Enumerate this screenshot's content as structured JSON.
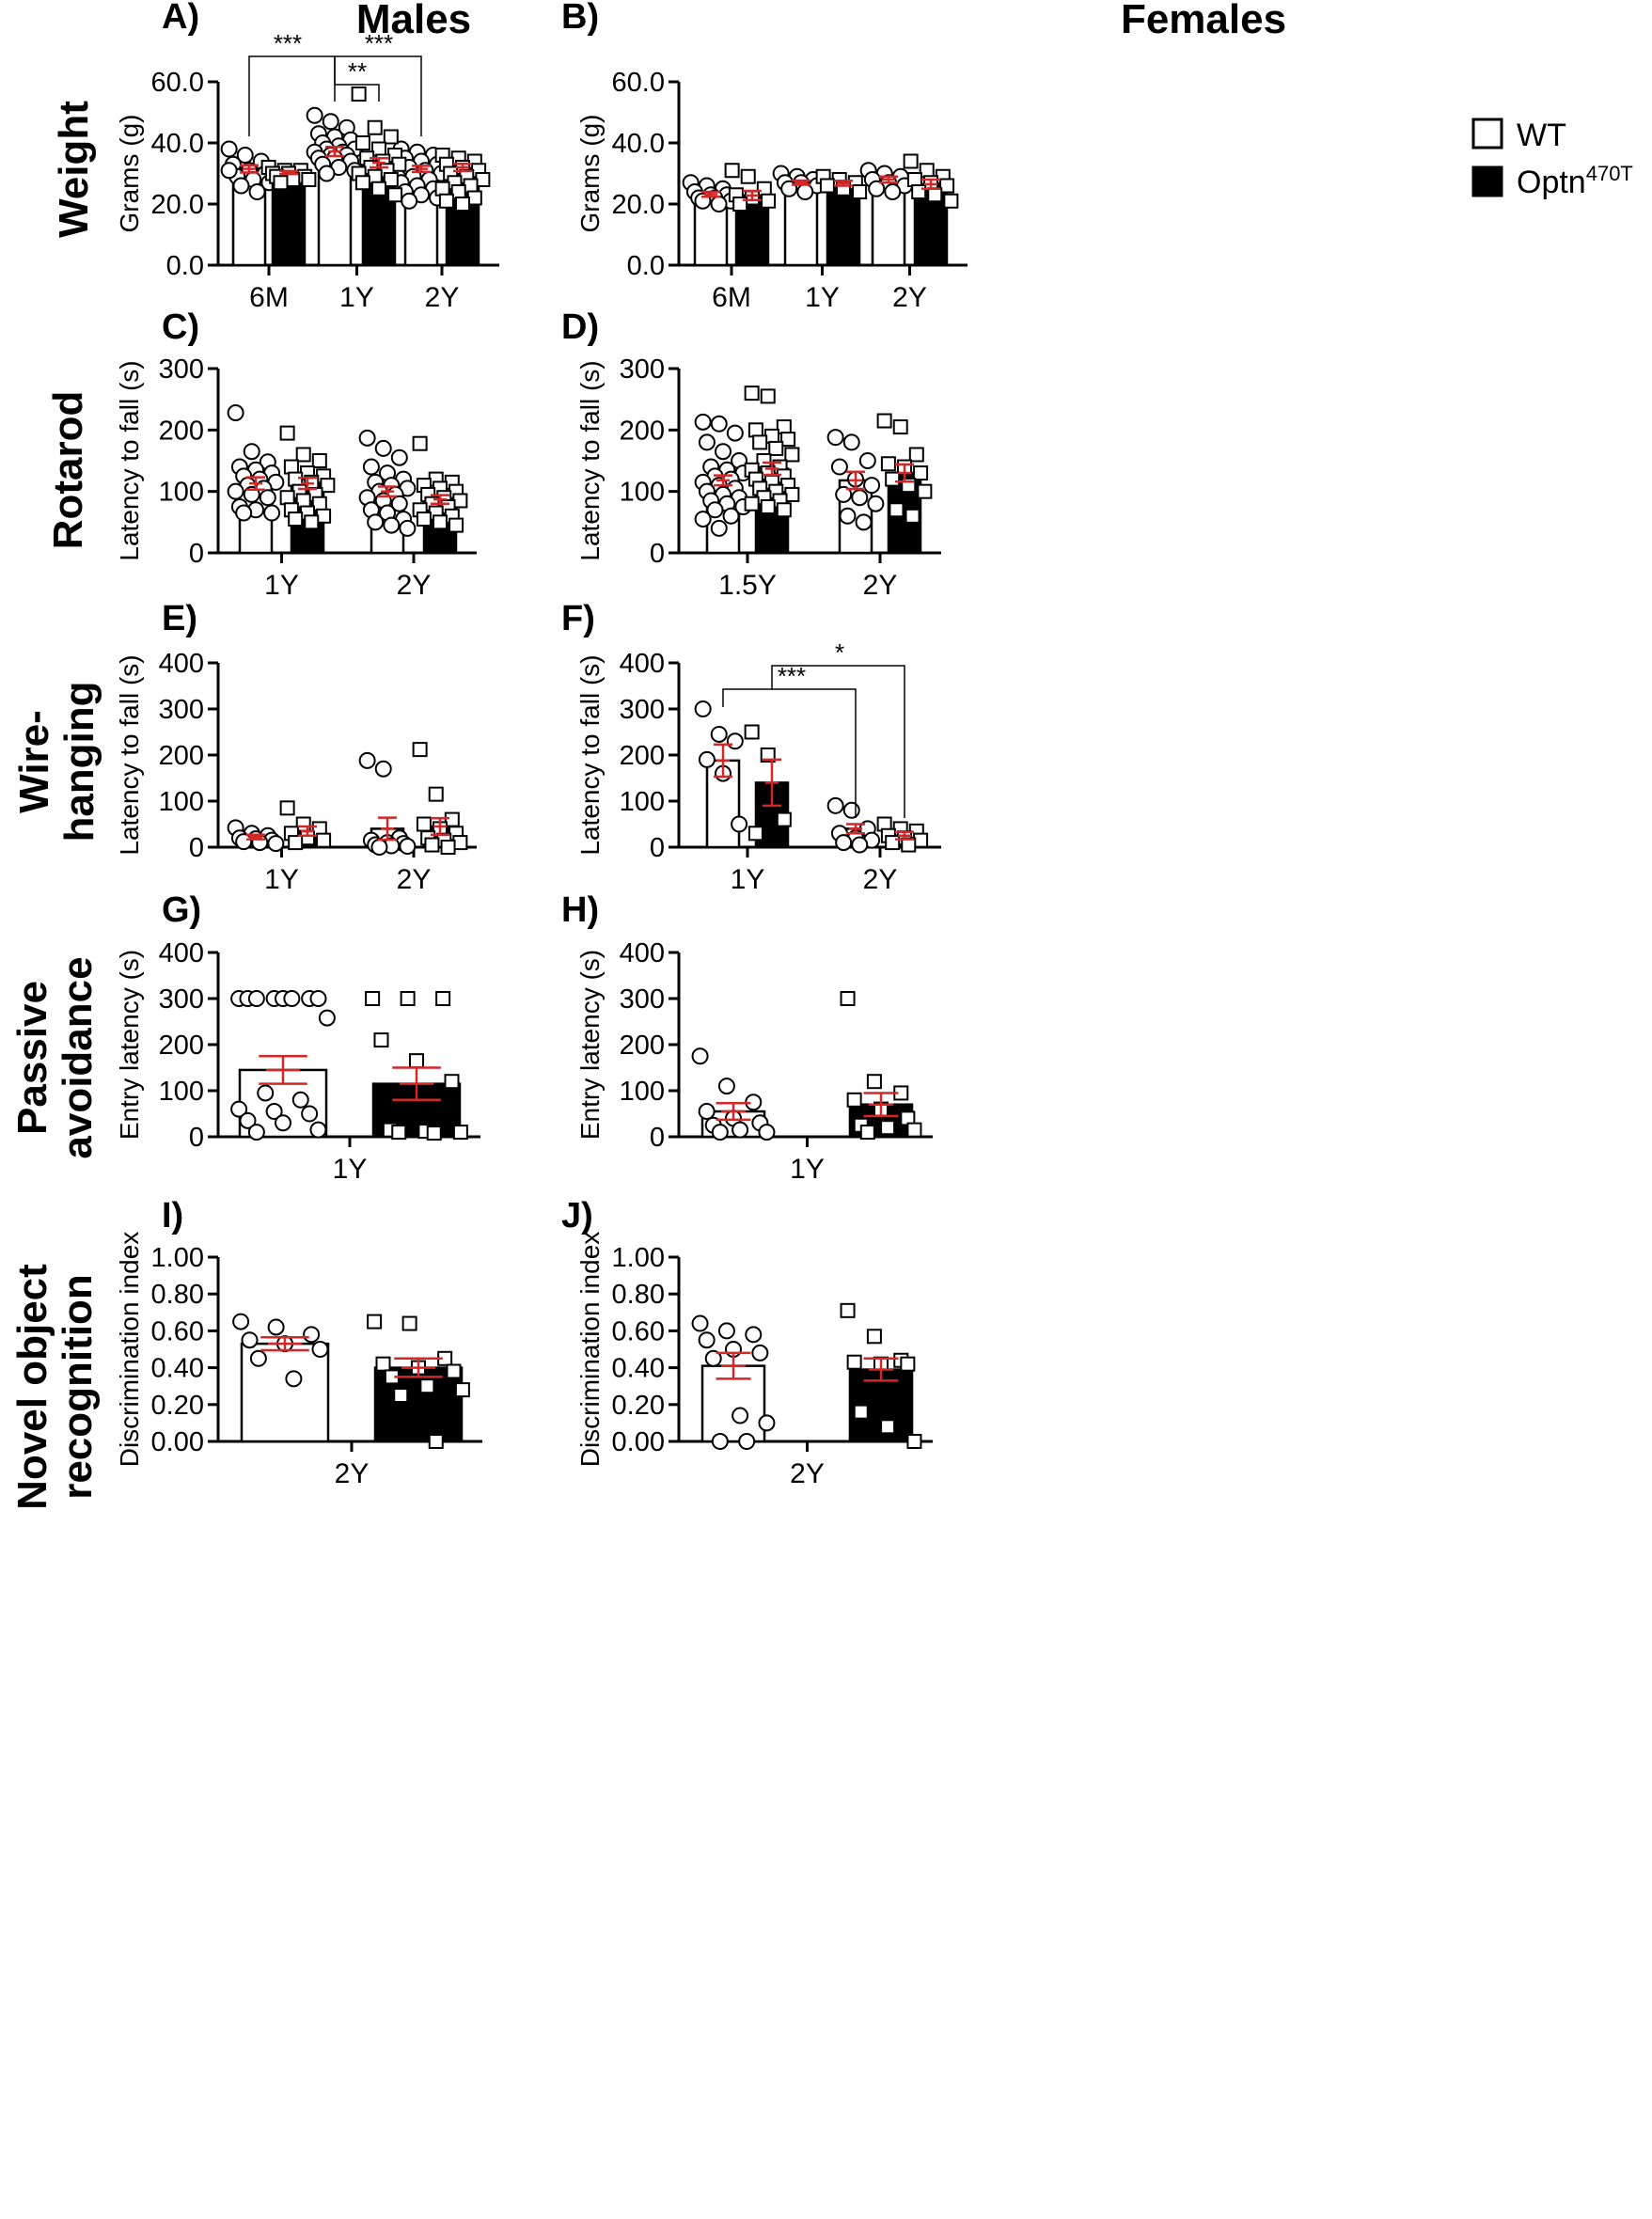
{
  "columns": [
    "Males",
    "Females"
  ],
  "rows": [
    "Weight",
    "Rotarod",
    "Wire-\nhanging",
    "Passive\navoidance",
    "Novel object\nrecognition"
  ],
  "legend": {
    "wt": "WT",
    "mut_base": "Optn",
    "mut_sup": "470T"
  },
  "colors": {
    "wt_fill": "#ffffff",
    "mut_fill": "#000000",
    "error": "#d62728",
    "axis": "#000000"
  },
  "chart_data": [
    {
      "panel": "A)",
      "type": "bar",
      "ylabel": "Grams (g)",
      "ylim": [
        0,
        60
      ],
      "yticks": [
        0,
        20,
        40,
        60
      ],
      "decimals": 1,
      "categories": [
        "6M",
        "1Y",
        "2Y"
      ],
      "series": [
        {
          "name": "WT",
          "means": [
            31.5,
            37.2,
            31.5
          ],
          "sem": [
            1.2,
            1.5,
            1.0
          ],
          "points": [
            [
              38,
              36,
              34,
              33,
              31,
              30,
              29,
              28,
              27,
              26,
              24,
              31
            ],
            [
              49,
              47,
              45,
              43,
              42,
              41,
              40,
              39,
              38,
              38,
              37,
              37,
              36,
              36,
              35,
              35,
              34,
              33,
              32,
              31,
              30
            ],
            [
              38,
              37,
              36,
              35,
              34,
              33,
              32,
              31,
              30,
              29,
              28,
              27,
              26,
              25,
              24,
              23,
              22,
              21
            ]
          ]
        },
        {
          "name": "Optn470T",
          "means": [
            30.3,
            33.5,
            32.0
          ],
          "sem": [
            0.5,
            1.5,
            1.2
          ],
          "points": [
            [
              32,
              31,
              31,
              30,
              30,
              29,
              29,
              28,
              28,
              27
            ],
            [
              56,
              45,
              42,
              40,
              38,
              36,
              35,
              34,
              33,
              32,
              31,
              30,
              29,
              28,
              27,
              25,
              23
            ],
            [
              36,
              35,
              34,
              33,
              32,
              31,
              30,
              29,
              28,
              27,
              26,
              25,
              24,
              22,
              21,
              20
            ]
          ]
        }
      ],
      "significance": [
        {
          "from": "6M WT",
          "to": "1Y WT",
          "label": "***"
        },
        {
          "from": "1Y WT",
          "to": "1Y Optn470T",
          "label": "**"
        },
        {
          "from": "1Y WT",
          "to": "2Y WT",
          "label": "***"
        }
      ]
    },
    {
      "panel": "B)",
      "type": "bar",
      "ylabel": "Grams (g)",
      "ylim": [
        0,
        60
      ],
      "yticks": [
        0,
        20,
        40,
        60
      ],
      "decimals": 1,
      "categories": [
        "6M",
        "1Y",
        "2Y"
      ],
      "series": [
        {
          "name": "WT",
          "means": [
            23.2,
            27.0,
            28.0
          ],
          "sem": [
            0.8,
            0.7,
            1.0
          ],
          "points": [
            [
              27,
              26,
              25,
              24,
              23,
              23,
              22,
              22,
              21,
              21,
              20
            ],
            [
              30,
              29,
              28,
              27,
              27,
              26,
              25,
              24
            ],
            [
              31,
              30,
              29,
              28,
              27,
              26,
              25,
              24
            ]
          ]
        },
        {
          "name": "Optn470T",
          "means": [
            22.8,
            26.8,
            26.5
          ],
          "sem": [
            1.5,
            0.8,
            1.5
          ],
          "points": [
            [
              31,
              29,
              25,
              23,
              22,
              21,
              20
            ],
            [
              29,
              28,
              27,
              26,
              25,
              24
            ],
            [
              34,
              31,
              29,
              28,
              27,
              26,
              24,
              23,
              21
            ]
          ]
        }
      ],
      "significance": []
    },
    {
      "panel": "C)",
      "type": "bar",
      "ylabel": "Latency to fall (s)",
      "ylim": [
        0,
        300
      ],
      "yticks": [
        0,
        100,
        200,
        300
      ],
      "decimals": 0,
      "categories": [
        "1Y",
        "2Y"
      ],
      "series": [
        {
          "name": "WT",
          "means": [
            113,
            100
          ],
          "sem": [
            10,
            8
          ],
          "points": [
            [
              228,
              165,
              148,
              140,
              135,
              130,
              125,
              120,
              115,
              110,
              105,
              100,
              95,
              90,
              75,
              70,
              65,
              65
            ],
            [
              187,
              170,
              155,
              140,
              130,
              120,
              115,
              110,
              105,
              100,
              95,
              90,
              85,
              80,
              70,
              65,
              55,
              50,
              45,
              40
            ]
          ]
        },
        {
          "name": "Optn470T",
          "means": [
            113,
            87
          ],
          "sem": [
            9,
            7
          ],
          "points": [
            [
              195,
              160,
              150,
              140,
              130,
              125,
              120,
              115,
              110,
              100,
              95,
              90,
              85,
              80,
              70,
              65,
              60,
              55,
              50
            ],
            [
              178,
              120,
              115,
              110,
              105,
              100,
              95,
              90,
              85,
              80,
              75,
              70,
              65,
              60,
              55,
              50,
              45
            ]
          ]
        }
      ],
      "significance": []
    },
    {
      "panel": "D)",
      "type": "bar",
      "ylabel": "Latency to fall  (s)",
      "ylim": [
        0,
        300
      ],
      "yticks": [
        0,
        100,
        200,
        300
      ],
      "decimals": 0,
      "categories": [
        "1.5Y",
        "2Y"
      ],
      "series": [
        {
          "name": "WT",
          "means": [
            118,
            118
          ],
          "sem": [
            8,
            14
          ],
          "points": [
            [
              213,
              210,
              195,
              180,
              165,
              150,
              140,
              135,
              130,
              125,
              120,
              115,
              110,
              105,
              100,
              95,
              90,
              85,
              80,
              75,
              70,
              60,
              55,
              40
            ],
            [
              188,
              180,
              150,
              140,
              120,
              110,
              95,
              90,
              80,
              60,
              50
            ]
          ]
        },
        {
          "name": "Optn470T",
          "means": [
            137,
            130
          ],
          "sem": [
            10,
            14
          ],
          "points": [
            [
              260,
              255,
              205,
              200,
              190,
              185,
              180,
              170,
              160,
              150,
              140,
              135,
              130,
              125,
              120,
              115,
              110,
              105,
              100,
              95,
              90,
              85,
              80,
              75,
              70
            ],
            [
              215,
              205,
              160,
              145,
              140,
              130,
              120,
              110,
              100,
              70,
              60
            ]
          ]
        }
      ],
      "significance": []
    },
    {
      "panel": "E)",
      "type": "bar",
      "ylabel": "Latency to fall (s)",
      "ylim": [
        0,
        400
      ],
      "yticks": [
        0,
        100,
        200,
        300,
        400
      ],
      "decimals": 0,
      "categories": [
        "1Y",
        "2Y"
      ],
      "series": [
        {
          "name": "WT",
          "means": [
            22,
            40
          ],
          "sem": [
            5,
            24
          ],
          "points": [
            [
              42,
              30,
              25,
              20,
              18,
              15,
              12,
              10,
              8
            ],
            [
              188,
              170,
              20,
              15,
              10,
              8,
              5,
              3,
              2,
              0
            ]
          ]
        },
        {
          "name": "Optn470T",
          "means": [
            35,
            45
          ],
          "sem": [
            10,
            18
          ],
          "points": [
            [
              85,
              50,
              40,
              30,
              20,
              15,
              10
            ],
            [
              212,
              115,
              60,
              50,
              40,
              30,
              20,
              15,
              10,
              5,
              0
            ]
          ]
        }
      ],
      "significance": []
    },
    {
      "panel": "F)",
      "type": "bar",
      "ylabel": "Latency to fall (s)",
      "ylim": [
        0,
        400
      ],
      "yticks": [
        0,
        100,
        200,
        300,
        400
      ],
      "decimals": 0,
      "categories": [
        "1Y",
        "2Y"
      ],
      "series": [
        {
          "name": "WT",
          "means": [
            188,
            40
          ],
          "sem": [
            35,
            10
          ],
          "points": [
            [
              300,
              245,
              230,
              190,
              160,
              50
            ],
            [
              90,
              80,
              40,
              30,
              20,
              15,
              10,
              5
            ]
          ]
        },
        {
          "name": "Optn470T",
          "means": [
            140,
            25
          ],
          "sem": [
            50,
            8
          ],
          "points": [
            [
              250,
              200,
              60,
              30
            ],
            [
              50,
              40,
              35,
              25,
              20,
              15,
              10,
              5
            ]
          ]
        }
      ],
      "significance": [
        {
          "from": "1Y WT",
          "to": "2Y WT",
          "label": "***"
        },
        {
          "from": "1Y Optn470T",
          "to": "2Y Optn470T",
          "label": "*"
        }
      ]
    },
    {
      "panel": "G)",
      "type": "bar",
      "ylabel": "Entry latency (s)",
      "ylim": [
        0,
        400
      ],
      "yticks": [
        0,
        100,
        200,
        300,
        400
      ],
      "decimals": 0,
      "categories": [
        "1Y"
      ],
      "series": [
        {
          "name": "WT",
          "means": [
            145
          ],
          "sem": [
            30
          ],
          "points": [
            [
              300,
              300,
              300,
              300,
              300,
              300,
              300,
              300,
              258,
              95,
              80,
              60,
              55,
              50,
              35,
              30,
              15,
              10
            ]
          ]
        },
        {
          "name": "Optn470T",
          "means": [
            115
          ],
          "sem": [
            35
          ],
          "points": [
            [
              300,
              300,
              300,
              210,
              165,
              120,
              15,
              12,
              10,
              10,
              8
            ]
          ]
        }
      ],
      "significance": []
    },
    {
      "panel": "H)",
      "type": "bar",
      "ylabel": "Entry latency (s)",
      "ylim": [
        0,
        400
      ],
      "yticks": [
        0,
        100,
        200,
        300,
        400
      ],
      "decimals": 0,
      "categories": [
        "1Y"
      ],
      "series": [
        {
          "name": "WT",
          "means": [
            55
          ],
          "sem": [
            18
          ],
          "points": [
            [
              175,
              110,
              75,
              55,
              40,
              30,
              25,
              15,
              10,
              10
            ]
          ]
        },
        {
          "name": "Optn470T",
          "means": [
            70
          ],
          "sem": [
            25
          ],
          "points": [
            [
              300,
              120,
              95,
              80,
              60,
              40,
              25,
              20,
              15,
              10
            ]
          ]
        }
      ],
      "significance": []
    },
    {
      "panel": "I)",
      "type": "bar",
      "ylabel": "Discrimination index",
      "ylim": [
        0,
        1
      ],
      "yticks": [
        0,
        0.2,
        0.4,
        0.6,
        0.8,
        1.0
      ],
      "decimals": 2,
      "categories": [
        "2Y"
      ],
      "series": [
        {
          "name": "WT",
          "means": [
            0.53
          ],
          "sem": [
            0.035
          ],
          "points": [
            [
              0.65,
              0.62,
              0.58,
              0.55,
              0.53,
              0.5,
              0.45,
              0.34
            ]
          ]
        },
        {
          "name": "Optn470T",
          "means": [
            0.4
          ],
          "sem": [
            0.05
          ],
          "points": [
            [
              0.65,
              0.64,
              0.45,
              0.42,
              0.4,
              0.38,
              0.35,
              0.3,
              0.28,
              0.25,
              0.0
            ]
          ]
        }
      ],
      "significance": []
    },
    {
      "panel": "J)",
      "type": "bar",
      "ylabel": "Discrimination index",
      "ylim": [
        0,
        1
      ],
      "yticks": [
        0,
        0.2,
        0.4,
        0.6,
        0.8,
        1.0
      ],
      "decimals": 2,
      "categories": [
        "2Y"
      ],
      "series": [
        {
          "name": "WT",
          "means": [
            0.41
          ],
          "sem": [
            0.07
          ],
          "points": [
            [
              0.64,
              0.6,
              0.58,
              0.55,
              0.5,
              0.48,
              0.45,
              0.14,
              0.1,
              0.0,
              0.0
            ]
          ]
        },
        {
          "name": "Optn470T",
          "means": [
            0.39
          ],
          "sem": [
            0.06
          ],
          "points": [
            [
              0.71,
              0.57,
              0.44,
              0.43,
              0.42,
              0.42,
              0.16,
              0.08,
              0.0
            ]
          ]
        }
      ],
      "significance": []
    }
  ]
}
